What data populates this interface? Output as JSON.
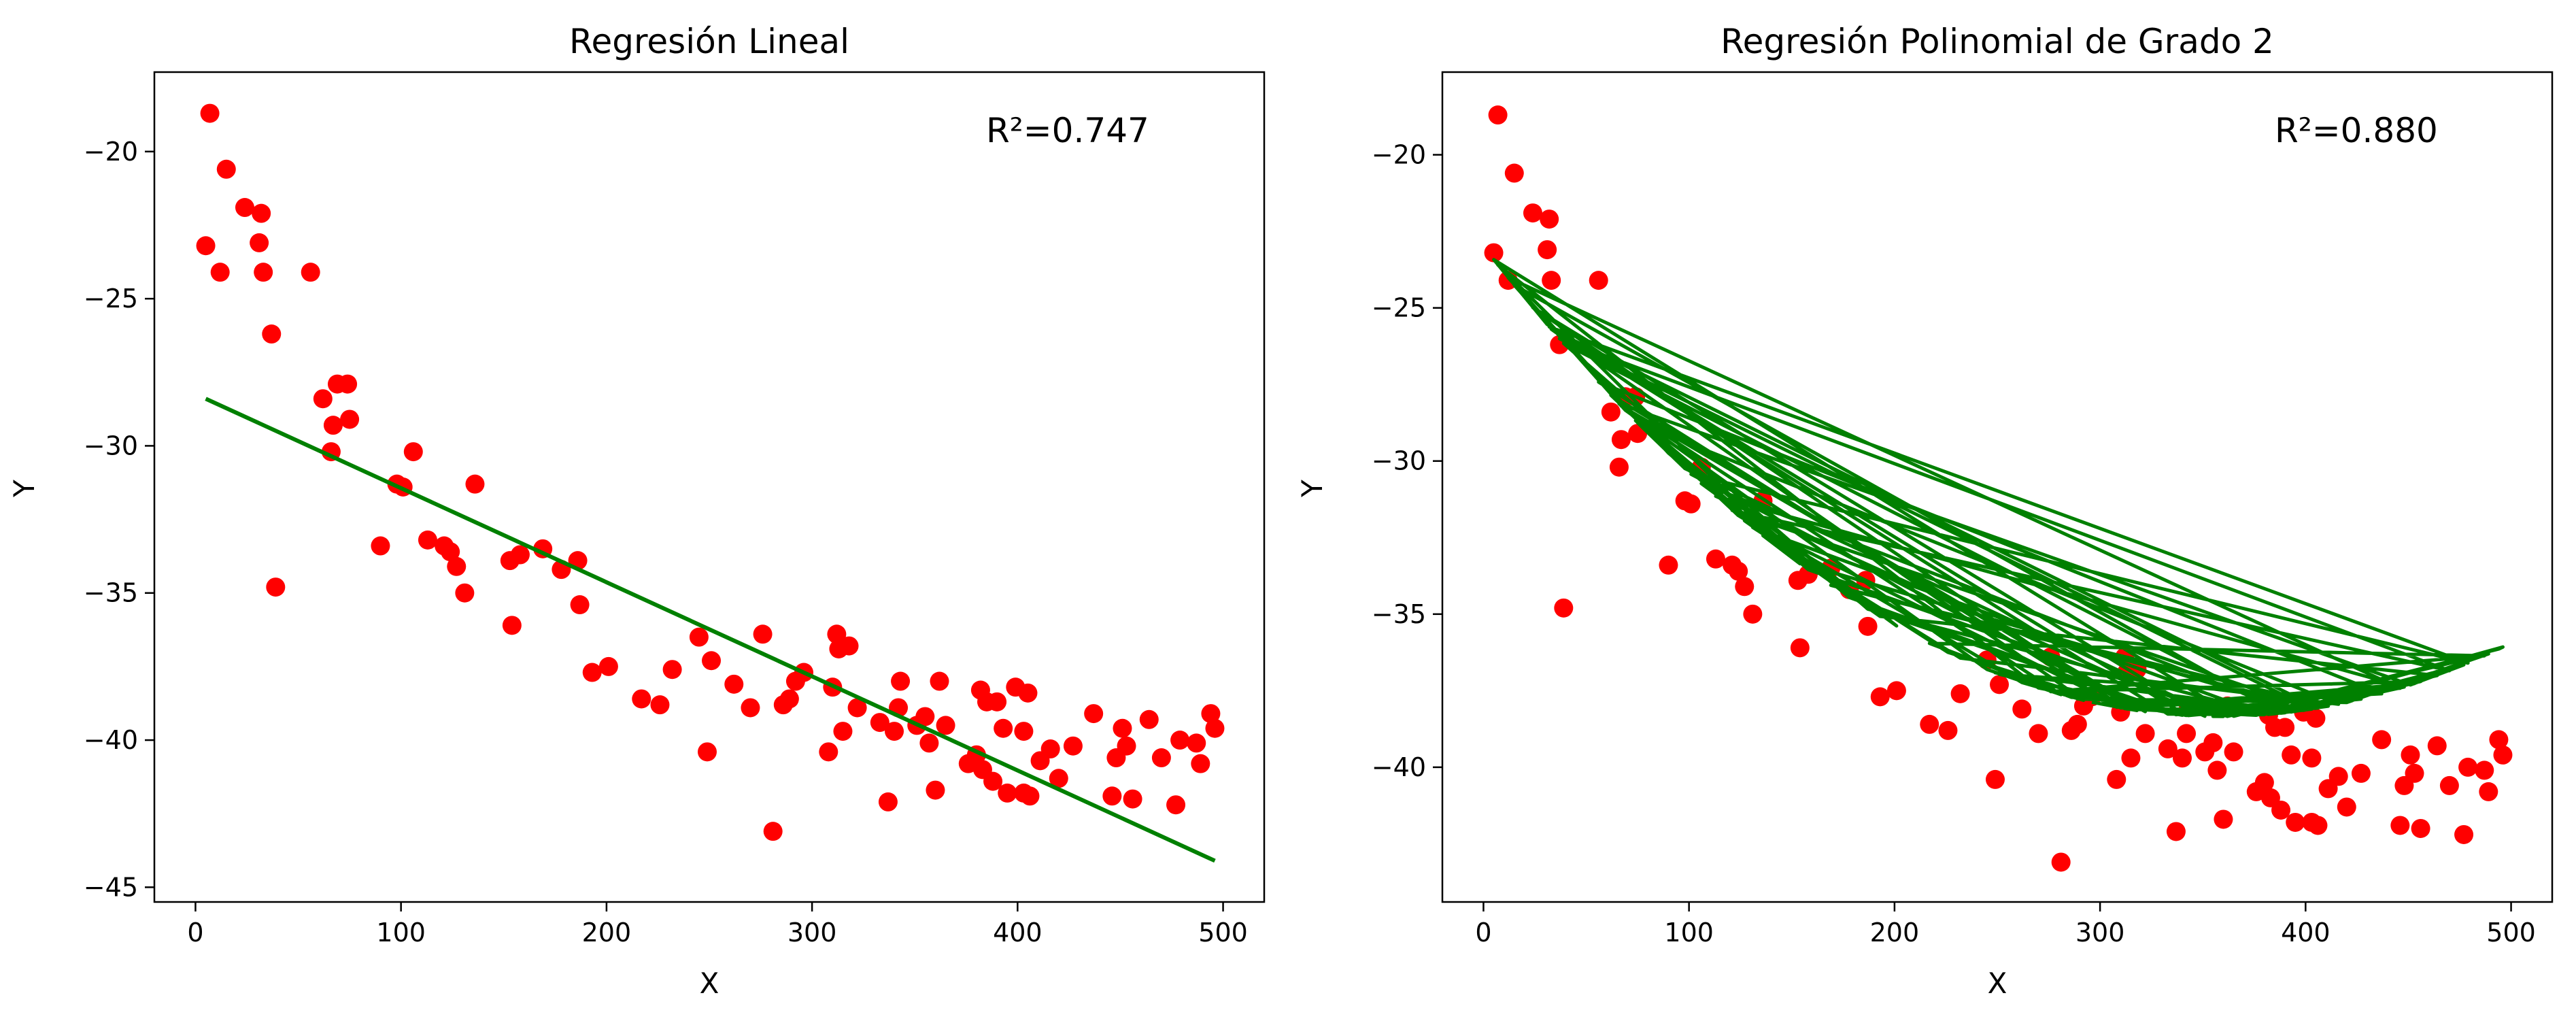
{
  "chart_data": [
    {
      "type": "scatter",
      "title": "Regresión Lineal",
      "xlabel": "X",
      "ylabel": "Y",
      "xlim": [
        -20,
        520
      ],
      "ylim": [
        -45.5,
        -17.3
      ],
      "xticks": [
        0,
        100,
        200,
        300,
        400,
        500
      ],
      "yticks": [
        -45,
        -40,
        -35,
        -30,
        -25,
        -20
      ],
      "xtick_labels": [
        "0",
        "100",
        "200",
        "300",
        "400",
        "500"
      ],
      "ytick_labels": [
        "−45",
        "−40",
        "−35",
        "−30",
        "−25",
        "−20"
      ],
      "grid": false,
      "annotation": "R²=0.747",
      "points_color": "#ff0000",
      "fit_color": "#008000",
      "fit": {
        "kind": "linear",
        "x": [
          5,
          496
        ],
        "y": [
          -28.4,
          -44.1
        ]
      },
      "points": [
        [
          5,
          -23.2
        ],
        [
          7,
          -18.7
        ],
        [
          12,
          -24.1
        ],
        [
          15,
          -20.6
        ],
        [
          24,
          -21.9
        ],
        [
          31,
          -23.1
        ],
        [
          32,
          -22.1
        ],
        [
          33,
          -24.1
        ],
        [
          37,
          -26.2
        ],
        [
          39,
          -34.8
        ],
        [
          56,
          -24.1
        ],
        [
          62,
          -28.4
        ],
        [
          66,
          -30.2
        ],
        [
          67,
          -29.3
        ],
        [
          69,
          -27.9
        ],
        [
          74,
          -27.9
        ],
        [
          75,
          -29.1
        ],
        [
          90,
          -33.4
        ],
        [
          98,
          -31.3
        ],
        [
          101,
          -31.4
        ],
        [
          106,
          -30.2
        ],
        [
          113,
          -33.2
        ],
        [
          121,
          -33.4
        ],
        [
          124,
          -33.6
        ],
        [
          127,
          -34.1
        ],
        [
          131,
          -35.0
        ],
        [
          136,
          -31.3
        ],
        [
          153,
          -33.9
        ],
        [
          154,
          -36.1
        ],
        [
          158,
          -33.7
        ],
        [
          169,
          -33.5
        ],
        [
          178,
          -34.2
        ],
        [
          186,
          -33.9
        ],
        [
          187,
          -35.4
        ],
        [
          193,
          -37.7
        ],
        [
          201,
          -37.5
        ],
        [
          217,
          -38.6
        ],
        [
          226,
          -38.8
        ],
        [
          232,
          -37.6
        ],
        [
          245,
          -36.5
        ],
        [
          249,
          -40.4
        ],
        [
          251,
          -37.3
        ],
        [
          262,
          -38.1
        ],
        [
          270,
          -38.9
        ],
        [
          276,
          -36.4
        ],
        [
          281,
          -43.1
        ],
        [
          286,
          -38.8
        ],
        [
          289,
          -38.6
        ],
        [
          292,
          -38.0
        ],
        [
          296,
          -37.7
        ],
        [
          308,
          -40.4
        ],
        [
          310,
          -38.2
        ],
        [
          312,
          -36.4
        ],
        [
          313,
          -36.9
        ],
        [
          315,
          -39.7
        ],
        [
          318,
          -36.8
        ],
        [
          322,
          -38.9
        ],
        [
          333,
          -39.4
        ],
        [
          337,
          -42.1
        ],
        [
          340,
          -39.7
        ],
        [
          342,
          -38.9
        ],
        [
          343,
          -38.0
        ],
        [
          351,
          -39.5
        ],
        [
          355,
          -39.2
        ],
        [
          357,
          -40.1
        ],
        [
          360,
          -41.7
        ],
        [
          362,
          -38.0
        ],
        [
          365,
          -39.5
        ],
        [
          376,
          -40.8
        ],
        [
          380,
          -40.5
        ],
        [
          382,
          -38.3
        ],
        [
          383,
          -41.0
        ],
        [
          385,
          -38.7
        ],
        [
          388,
          -41.4
        ],
        [
          390,
          -38.7
        ],
        [
          393,
          -39.6
        ],
        [
          395,
          -41.8
        ],
        [
          399,
          -38.2
        ],
        [
          403,
          -41.8
        ],
        [
          403,
          -39.7
        ],
        [
          405,
          -38.4
        ],
        [
          406,
          -41.9
        ],
        [
          411,
          -40.7
        ],
        [
          416,
          -40.3
        ],
        [
          420,
          -41.3
        ],
        [
          427,
          -40.2
        ],
        [
          437,
          -39.1
        ],
        [
          446,
          -41.9
        ],
        [
          448,
          -40.6
        ],
        [
          451,
          -39.6
        ],
        [
          453,
          -40.2
        ],
        [
          456,
          -42.0
        ],
        [
          464,
          -39.3
        ],
        [
          470,
          -40.6
        ],
        [
          477,
          -42.2
        ],
        [
          479,
          -40.0
        ],
        [
          487,
          -40.1
        ],
        [
          489,
          -40.8
        ],
        [
          494,
          -39.1
        ],
        [
          496,
          -39.6
        ]
      ]
    },
    {
      "type": "scatter",
      "title": "Regresión Polinomial de Grado 2",
      "xlabel": "X",
      "ylabel": "Y",
      "xlim": [
        -20,
        520
      ],
      "ylim": [
        -44.4,
        -17.3
      ],
      "xticks": [
        0,
        100,
        200,
        300,
        400,
        500
      ],
      "yticks": [
        -40,
        -35,
        -30,
        -25,
        -20
      ],
      "xtick_labels": [
        "0",
        "100",
        "200",
        "300",
        "400",
        "500"
      ],
      "ytick_labels": [
        "−40",
        "−35",
        "−30",
        "−25",
        "−20"
      ],
      "grid": false,
      "annotation": "R²=0.880",
      "points_color": "#ff0000",
      "fit_color": "#008000",
      "fit": {
        "kind": "quadratic",
        "coefficients": [
          0.0001195,
          -0.08563,
          -23.0
        ]
      },
      "points": [
        [
          5,
          -23.2
        ],
        [
          7,
          -18.7
        ],
        [
          12,
          -24.1
        ],
        [
          15,
          -20.6
        ],
        [
          24,
          -21.9
        ],
        [
          31,
          -23.1
        ],
        [
          32,
          -22.1
        ],
        [
          33,
          -24.1
        ],
        [
          37,
          -26.2
        ],
        [
          39,
          -34.8
        ],
        [
          56,
          -24.1
        ],
        [
          62,
          -28.4
        ],
        [
          66,
          -30.2
        ],
        [
          67,
          -29.3
        ],
        [
          69,
          -27.9
        ],
        [
          74,
          -27.9
        ],
        [
          75,
          -29.1
        ],
        [
          90,
          -33.4
        ],
        [
          98,
          -31.3
        ],
        [
          101,
          -31.4
        ],
        [
          106,
          -30.2
        ],
        [
          113,
          -33.2
        ],
        [
          121,
          -33.4
        ],
        [
          124,
          -33.6
        ],
        [
          127,
          -34.1
        ],
        [
          131,
          -35.0
        ],
        [
          136,
          -31.3
        ],
        [
          153,
          -33.9
        ],
        [
          154,
          -36.1
        ],
        [
          158,
          -33.7
        ],
        [
          169,
          -33.5
        ],
        [
          178,
          -34.2
        ],
        [
          186,
          -33.9
        ],
        [
          187,
          -35.4
        ],
        [
          193,
          -37.7
        ],
        [
          201,
          -37.5
        ],
        [
          217,
          -38.6
        ],
        [
          226,
          -38.8
        ],
        [
          232,
          -37.6
        ],
        [
          245,
          -36.5
        ],
        [
          249,
          -40.4
        ],
        [
          251,
          -37.3
        ],
        [
          262,
          -38.1
        ],
        [
          270,
          -38.9
        ],
        [
          276,
          -36.4
        ],
        [
          281,
          -43.1
        ],
        [
          286,
          -38.8
        ],
        [
          289,
          -38.6
        ],
        [
          292,
          -38.0
        ],
        [
          296,
          -37.7
        ],
        [
          308,
          -40.4
        ],
        [
          310,
          -38.2
        ],
        [
          312,
          -36.4
        ],
        [
          313,
          -36.9
        ],
        [
          315,
          -39.7
        ],
        [
          318,
          -36.8
        ],
        [
          322,
          -38.9
        ],
        [
          333,
          -39.4
        ],
        [
          337,
          -42.1
        ],
        [
          340,
          -39.7
        ],
        [
          342,
          -38.9
        ],
        [
          343,
          -38.0
        ],
        [
          351,
          -39.5
        ],
        [
          355,
          -39.2
        ],
        [
          357,
          -40.1
        ],
        [
          360,
          -41.7
        ],
        [
          362,
          -38.0
        ],
        [
          365,
          -39.5
        ],
        [
          376,
          -40.8
        ],
        [
          380,
          -40.5
        ],
        [
          382,
          -38.3
        ],
        [
          383,
          -41.0
        ],
        [
          385,
          -38.7
        ],
        [
          388,
          -41.4
        ],
        [
          390,
          -38.7
        ],
        [
          393,
          -39.6
        ],
        [
          395,
          -41.8
        ],
        [
          399,
          -38.2
        ],
        [
          403,
          -41.8
        ],
        [
          403,
          -39.7
        ],
        [
          405,
          -38.4
        ],
        [
          406,
          -41.9
        ],
        [
          411,
          -40.7
        ],
        [
          416,
          -40.3
        ],
        [
          420,
          -41.3
        ],
        [
          427,
          -40.2
        ],
        [
          437,
          -39.1
        ],
        [
          446,
          -41.9
        ],
        [
          448,
          -40.6
        ],
        [
          451,
          -39.6
        ],
        [
          453,
          -40.2
        ],
        [
          456,
          -42.0
        ],
        [
          464,
          -39.3
        ],
        [
          470,
          -40.6
        ],
        [
          477,
          -42.2
        ],
        [
          479,
          -40.0
        ],
        [
          487,
          -40.1
        ],
        [
          489,
          -40.8
        ],
        [
          494,
          -39.1
        ],
        [
          496,
          -39.6
        ]
      ]
    }
  ]
}
